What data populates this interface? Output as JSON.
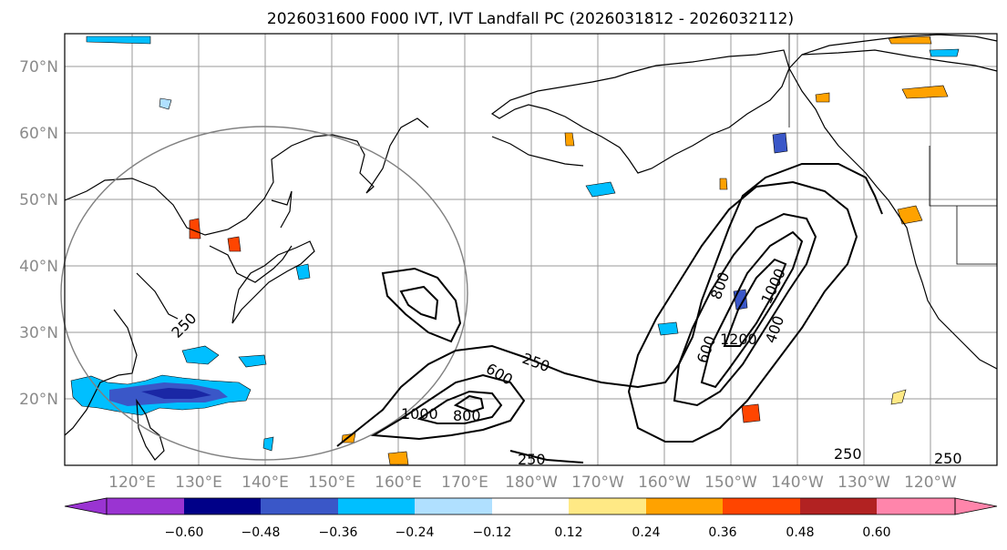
{
  "title": "2026031600 F000 IVT, IVT Landfall PC (2026031812 - 2026032112)",
  "lat_labels": [
    "70°N",
    "60°N",
    "50°N",
    "40°N",
    "30°N",
    "20°N"
  ],
  "lon_labels": [
    "120°E",
    "130°E",
    "140°E",
    "150°E",
    "160°E",
    "170°E",
    "180°W",
    "170°W",
    "160°W",
    "150°W",
    "140°W",
    "130°W",
    "120°W"
  ],
  "colorbar": {
    "ticks": [
      "−0.60",
      "−0.48",
      "−0.36",
      "−0.24",
      "−0.12",
      "0.12",
      "0.24",
      "0.36",
      "0.48",
      "0.60"
    ],
    "colors": [
      "#9a34d2",
      "#000088",
      "#3a57c8",
      "#00bfff",
      "#b0e0ff",
      "#ffffff",
      "#ffe985",
      "#ffa200",
      "#ff4500",
      "#b22222",
      "#ff85ab"
    ]
  },
  "contour_labels": [
    "250",
    "250",
    "600",
    "1000",
    "800",
    "250",
    "800",
    "1000",
    "1200",
    "600",
    "400",
    "250",
    "250"
  ]
}
